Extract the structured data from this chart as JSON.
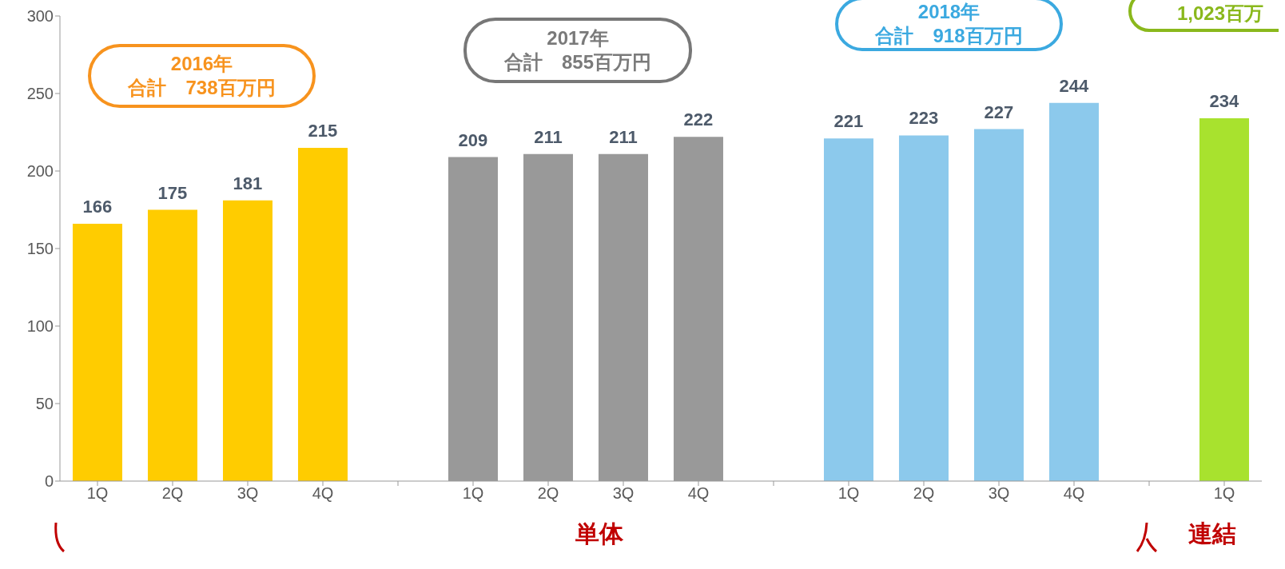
{
  "chart_data": {
    "type": "bar",
    "categories": [
      "1Q",
      "2Q",
      "3Q",
      "4Q",
      null,
      "1Q",
      "2Q",
      "3Q",
      "4Q",
      null,
      "1Q",
      "2Q",
      "3Q",
      "4Q",
      null,
      "1Q"
    ],
    "values": [
      166,
      175,
      181,
      215,
      null,
      209,
      211,
      211,
      222,
      null,
      221,
      223,
      227,
      244,
      null,
      234
    ],
    "colors": [
      "#ffcc00",
      "#ffcc00",
      "#ffcc00",
      "#ffcc00",
      null,
      "#999999",
      "#999999",
      "#999999",
      "#999999",
      null,
      "#8cc9ec",
      "#8cc9ec",
      "#8cc9ec",
      "#8cc9ec",
      null,
      "#a8e22e"
    ],
    "ylim": [
      0,
      300
    ],
    "yticks": [
      0,
      50,
      100,
      150,
      200,
      250,
      300
    ],
    "data_labels": true,
    "grid": false,
    "legend": false,
    "annotations": [
      "2016年",
      "合計　738百万円",
      "2017年",
      "合計　855百万円",
      "2018年",
      "合計　918百万円",
      "1,023百万",
      "単体",
      "連結"
    ]
  }
}
